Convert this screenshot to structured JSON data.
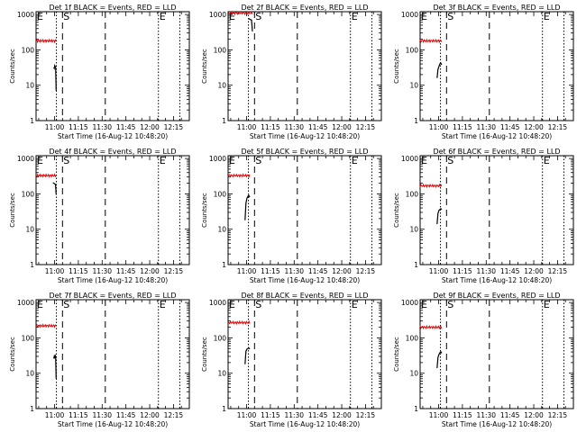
{
  "chart_data": {
    "type": "line",
    "y_scale": "log",
    "ylim": [
      1,
      1200
    ],
    "xlim": [
      "10:48:20",
      "12:25:00"
    ],
    "ylabel": "Counts/sec",
    "xlabel": "Start Time (16-Aug-12 10:48:20)",
    "x_tick_labels": [
      "11:00",
      "11:15",
      "11:30",
      "11:45",
      "12:00",
      "12:15"
    ],
    "y_tick_labels": [
      "1",
      "10",
      "100",
      "1000"
    ],
    "markers": [
      {
        "label": "E",
        "time": "10:48:20",
        "style": "dotted"
      },
      {
        "label": "S",
        "time": "11:05:00",
        "style": "dashed"
      },
      {
        "label": "",
        "time": "11:32:00",
        "style": "dashed"
      },
      {
        "label": "E",
        "time": "12:05:30",
        "style": "dotted"
      },
      {
        "label": "",
        "time": "11:01:10",
        "style": "dotted"
      },
      {
        "label": "",
        "time": "12:19:00",
        "style": "dotted"
      }
    ],
    "panels": [
      {
        "title": "Det 1f BLACK = Events, RED = LLD",
        "red": {
          "start": "10:48:20",
          "end": "11:01:00",
          "value": 180
        },
        "black": {
          "start": "10:59:30",
          "end": "11:01:00",
          "values": [
            32,
            30,
            36,
            34,
            33,
            7
          ]
        }
      },
      {
        "title": "Det 2f BLACK = Events, RED = LLD",
        "red": {
          "start": "10:48:20",
          "end": "11:03:40",
          "value": 1100
        },
        "black": {
          "start": "11:01:00",
          "end": "11:03:40",
          "values": [
            760,
            760,
            730,
            710,
            700,
            330
          ]
        }
      },
      {
        "title": "Det 3f BLACK = Events, RED = LLD",
        "red": {
          "start": "10:48:20",
          "end": "11:02:00",
          "value": 180
        },
        "black": {
          "start": "10:59:00",
          "end": "11:02:00",
          "values": [
            16,
            28,
            34,
            40,
            42,
            38
          ]
        }
      },
      {
        "title": "Det 4f BLACK = Events, RED = LLD",
        "red": {
          "start": "10:48:20",
          "end": "11:01:00",
          "value": 330
        },
        "black": {
          "start": "10:59:00",
          "end": "11:01:00",
          "values": [
            210,
            200,
            195,
            190,
            185,
            95
          ]
        }
      },
      {
        "title": "Det 5f BLACK = Events, RED = LLD",
        "red": {
          "start": "10:48:20",
          "end": "11:02:00",
          "value": 330
        },
        "black": {
          "start": "10:59:00",
          "end": "11:02:00",
          "values": [
            18,
            55,
            75,
            85,
            90,
            80
          ]
        }
      },
      {
        "title": "Det 6f BLACK = Events, RED = LLD",
        "red": {
          "start": "10:48:20",
          "end": "11:02:00",
          "value": 170
        },
        "black": {
          "start": "10:59:00",
          "end": "11:02:00",
          "values": [
            14,
            28,
            34,
            36,
            38,
            36
          ]
        }
      },
      {
        "title": "Det 7f BLACK = Events, RED = LLD",
        "red": {
          "start": "10:48:20",
          "end": "11:01:00",
          "value": 220
        },
        "black": {
          "start": "10:59:30",
          "end": "11:01:00",
          "values": [
            26,
            30,
            28,
            32,
            30,
            7
          ]
        }
      },
      {
        "title": "Det 8f BLACK = Events, RED = LLD",
        "red": {
          "start": "10:48:20",
          "end": "11:02:00",
          "value": 270
        },
        "black": {
          "start": "10:59:00",
          "end": "11:02:00",
          "values": [
            18,
            42,
            48,
            50,
            52,
            48
          ]
        }
      },
      {
        "title": "Det 9f BLACK = Events, RED = LLD",
        "red": {
          "start": "10:48:20",
          "end": "11:02:00",
          "value": 200
        },
        "black": {
          "start": "10:59:00",
          "end": "11:02:00",
          "values": [
            14,
            28,
            34,
            38,
            40,
            37
          ]
        }
      }
    ]
  }
}
